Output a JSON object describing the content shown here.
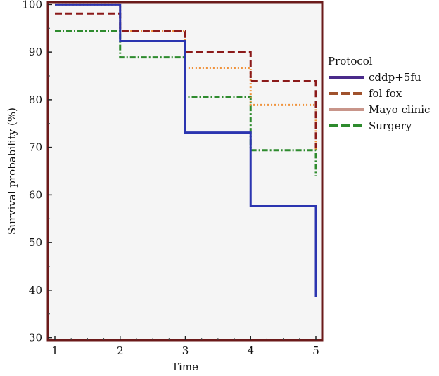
{
  "chart_data": {
    "type": "line",
    "step": true,
    "xlabel": "Time",
    "ylabel": "Survival probability (%)",
    "xlim": [
      1,
      5
    ],
    "ylim": [
      29.5,
      100.5
    ],
    "xticks": [
      1,
      2,
      3,
      4,
      5
    ],
    "yticks": [
      30,
      40,
      50,
      60,
      70,
      80,
      90,
      100
    ],
    "grid": false,
    "legend": {
      "title": "Protocol",
      "placement": "right"
    },
    "colors": {
      "frame": "#6b1a1a",
      "plot_background": "#f5f5f5"
    },
    "series": [
      {
        "name": "cddp+5fu",
        "color": "#2b35b0",
        "dash": "solid",
        "x": [
          1,
          2,
          3,
          4,
          5
        ],
        "y": [
          100,
          92.3,
          73.1,
          57.7,
          38.5
        ]
      },
      {
        "name": "fol fox",
        "color": "#8b1a1a",
        "dash": "dash",
        "x": [
          1,
          2,
          3,
          4,
          5
        ],
        "y": [
          98.1,
          94.4,
          90.1,
          83.9,
          69.9
        ]
      },
      {
        "name": "Mayo clinic",
        "color": "#f0923a",
        "dash": "dot",
        "x": [
          1,
          2,
          3,
          4,
          5
        ],
        "y": [
          100,
          94.4,
          86.7,
          78.9,
          69.5
        ]
      },
      {
        "name": "Surgery",
        "color": "#2e8b2e",
        "dash": "dashdot",
        "x": [
          1,
          2,
          3,
          4,
          5
        ],
        "y": [
          94.4,
          88.9,
          80.6,
          69.4,
          63.9
        ]
      }
    ],
    "legend_swatches": {
      "cddp+5fu": "#4a2a8a",
      "fol fox": "#a0522d",
      "Mayo clinic": "#c8958a",
      "Surgery": "#2e8b2e"
    }
  }
}
